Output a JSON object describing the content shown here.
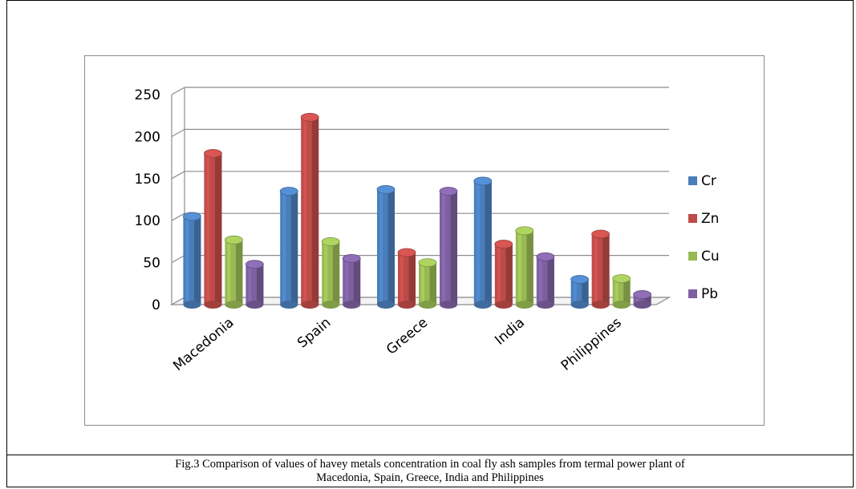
{
  "caption": {
    "line1": "Fig.3 Comparison of values of havey metals  concentration in  coal  fly ash samples from termal power plant of",
    "line2": "Macedonia, Spain, Greece, India and Philippines"
  },
  "colors": {
    "Cr": "#4a7ebb",
    "Zn": "#be4b48",
    "Cu": "#98b954",
    "Pb": "#7d60a0"
  },
  "chart_data": {
    "type": "bar",
    "categories": [
      "Macedonia",
      "Spain",
      "Greece",
      "India",
      "Philippines"
    ],
    "series": [
      {
        "name": "Cr",
        "values": [
          105,
          135,
          137,
          147,
          30
        ]
      },
      {
        "name": "Zn",
        "values": [
          180,
          223,
          62,
          72,
          84
        ]
      },
      {
        "name": "Cu",
        "values": [
          77,
          75,
          50,
          88,
          31
        ]
      },
      {
        "name": "Pb",
        "values": [
          48,
          55,
          135,
          57,
          12
        ]
      }
    ],
    "ylim": [
      0,
      250
    ],
    "yticks": [
      0,
      50,
      100,
      150,
      200,
      250
    ],
    "grid": true,
    "legend": "right",
    "style": "3d-clustered-column"
  }
}
